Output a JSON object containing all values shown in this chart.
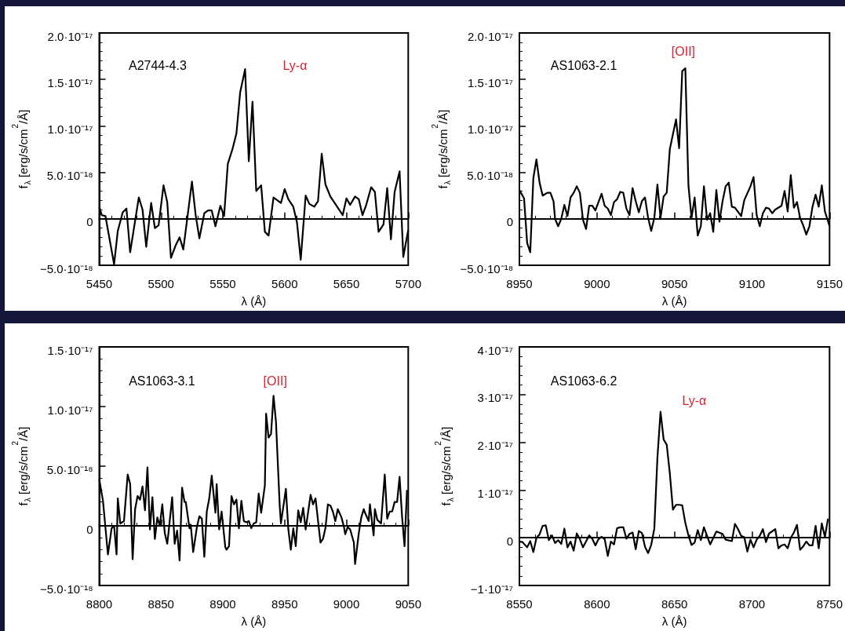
{
  "chart_data": [
    {
      "type": "line",
      "xlabel": "λ (Å)",
      "ylabel": "f$_{λ}$ [erg/s/cm$^{2}$/Å]",
      "color": "#000000",
      "annotations": [
        "A2744-4.3",
        "Ly-α"
      ],
      "xlim": [
        5450,
        5700
      ],
      "xticks": [
        5450,
        5500,
        5550,
        5600,
        5650,
        5700
      ],
      "ylim": [
        -5e-18,
        2e-17
      ],
      "yticks": [
        {
          "value": -5e-18,
          "label": "−5.0·10⁻¹⁸"
        },
        {
          "value": 0,
          "label": "0"
        },
        {
          "value": 5e-18,
          "label": "5.0·10⁻¹⁸"
        },
        {
          "value": 1e-17,
          "label": "1.0·10⁻¹⁷"
        },
        {
          "value": 1.5e-17,
          "label": "1.5·10⁻¹⁷"
        },
        {
          "value": 2e-17,
          "label": "2.0·10⁻¹⁷"
        }
      ],
      "x": [
        5450,
        5452,
        5455,
        5462,
        5465,
        5469,
        5472,
        5475,
        5482,
        5485,
        5488,
        5492,
        5495,
        5498,
        5502,
        5505,
        5508,
        5512,
        5515,
        5518,
        5525,
        5528,
        5531,
        5535,
        5538,
        5541,
        5544,
        5548,
        5551,
        5554,
        5558,
        5561,
        5564,
        5568,
        5571,
        5574,
        5577,
        5581,
        5584,
        5587,
        5591,
        5597,
        5600,
        5603,
        5607,
        5610,
        5613,
        5617,
        5620,
        5624,
        5627,
        5630,
        5633,
        5637,
        5647,
        5650,
        5653,
        5657,
        5660,
        5663,
        5666,
        5670,
        5673,
        5676,
        5680,
        5683,
        5686,
        5689,
        5693,
        5696,
        5700
      ],
      "values": [
        1.3e-18,
        4e-19,
        3e-19,
        -4.9e-18,
        -1.3e-18,
        7e-19,
        1.1e-18,
        -3.6e-18,
        2.3e-18,
        1e-18,
        -3e-18,
        1.7e-18,
        -1e-18,
        -7e-19,
        3.6e-18,
        1.8e-18,
        -4.2e-18,
        -2.8e-18,
        -2e-18,
        -3.3e-18,
        4e-18,
        4e-19,
        -2.1e-18,
        6e-19,
        9e-19,
        9e-19,
        -8e-19,
        1.4e-18,
        3e-19,
        5.9e-18,
        7.6e-18,
        9.2e-18,
        1.36e-17,
        1.61e-17,
        6.2e-18,
        1.26e-17,
        3e-18,
        3.6e-18,
        -1.4e-18,
        -1.8e-18,
        2.3e-18,
        1.7e-18,
        3.2e-18,
        2.1e-18,
        1.3e-18,
        -4e-19,
        -4.4e-18,
        2.5e-18,
        1.6e-18,
        1.3e-18,
        1.9e-18,
        7e-18,
        3.7e-18,
        2.4e-18,
        4e-19,
        2.2e-18,
        1.5e-18,
        2.4e-18,
        2.1e-18,
        4e-19,
        1.5e-18,
        3.4e-18,
        2.9e-18,
        -1.4e-18,
        -6e-19,
        3.3e-18,
        -2.2e-18,
        2.9e-18,
        5.1e-18,
        -4.1e-18,
        -1.2e-18
      ]
    },
    {
      "type": "line",
      "xlabel": "λ (Å)",
      "ylabel": "f$_{λ}$ [erg/s/cm$^{2}$/Å]",
      "color": "#000000",
      "annotations": [
        "AS1063-2.1",
        "[OII]"
      ],
      "xlim": [
        8950,
        9150
      ],
      "xticks": [
        8950,
        9000,
        9050,
        9100,
        9150
      ],
      "ylim": [
        -5e-18,
        2e-17
      ],
      "yticks": [
        {
          "value": -5e-18,
          "label": "−5.0·10⁻¹⁸"
        },
        {
          "value": 0,
          "label": "0"
        },
        {
          "value": 5e-18,
          "label": "5.0·10⁻¹⁸"
        },
        {
          "value": 1e-17,
          "label": "1.0·10⁻¹⁷"
        },
        {
          "value": 1.5e-17,
          "label": "1.5·10⁻¹⁷"
        },
        {
          "value": 2e-17,
          "label": "2.0·10⁻¹⁷"
        }
      ],
      "x": [
        8950,
        8953,
        8955,
        8957,
        8959,
        8961,
        8963,
        8965,
        8968,
        8970,
        8972,
        8973,
        8975,
        8977,
        8979,
        8981,
        8983,
        8985,
        8987,
        8989,
        8991,
        8993,
        8995,
        8997,
        8999,
        9003,
        9005,
        9007,
        9009,
        9011,
        9013,
        9015,
        9017,
        9019,
        9021,
        9023,
        9025,
        9027,
        9029,
        9031,
        9033,
        9035,
        9037,
        9039,
        9041,
        9043,
        9045,
        9047,
        9051,
        9053,
        9055,
        9057,
        9059,
        9061,
        9063,
        9065,
        9067,
        9069,
        9071,
        9073,
        9075,
        9077,
        9079,
        9081,
        9083,
        9085,
        9087,
        9089,
        9093,
        9095,
        9099,
        9101,
        9103,
        9105,
        9107,
        9109,
        9111,
        9113,
        9115,
        9119,
        9121,
        9123,
        9125,
        9127,
        9129,
        9131,
        9133,
        9135,
        9137,
        9139,
        9141,
        9143,
        9145,
        9147,
        9150
      ],
      "values": [
        3.1e-18,
        2.2e-18,
        -2.6e-18,
        -3.6e-18,
        4.4e-18,
        6.4e-18,
        3.9e-18,
        2.5e-18,
        2.8e-18,
        2.8e-18,
        1.9e-18,
        0.0,
        -8e-19,
        0.0,
        1.5e-18,
        3e-19,
        2.3e-18,
        2.8e-18,
        3.5e-18,
        2.8e-18,
        -1e-19,
        -1.1e-18,
        1.4e-18,
        1.4e-18,
        9e-19,
        2.7e-18,
        1.4e-18,
        1.1e-18,
        4e-19,
        1.8e-18,
        2.1e-18,
        2.9e-18,
        2.8e-18,
        1.1e-18,
        4e-19,
        3.3e-18,
        1.9e-18,
        7e-19,
        1.9e-18,
        2.3e-18,
        1e-19,
        -1.3e-18,
        1e-19,
        3.7e-18,
        1e-19,
        2.4e-18,
        2.8e-18,
        7.5e-18,
        1.07e-17,
        7.6e-18,
        1.59e-17,
        1.62e-17,
        3.6e-18,
        1e-19,
        2.3e-18,
        -1.8e-18,
        -8e-19,
        3.5e-18,
        -1e-19,
        6e-19,
        -1.4e-18,
        3.1e-18,
        -3e-19,
        1.9e-18,
        3.5e-18,
        3.9e-18,
        1.3e-18,
        1.2e-18,
        3e-19,
        2e-18,
        3.5e-18,
        4.5e-18,
        4e-19,
        -8e-19,
        6e-19,
        1.2e-18,
        1.1e-18,
        6e-19,
        1e-18,
        1.4e-18,
        3e-18,
        8e-19,
        4.7e-18,
        1.2e-18,
        1.8e-18,
        1e-19,
        -7e-19,
        -1.7e-18,
        -8e-19,
        1.3e-18,
        2.6e-18,
        1.3e-18,
        3.6e-18,
        8e-19,
        -8e-19
      ]
    },
    {
      "type": "line",
      "xlabel": "λ (Å)",
      "ylabel": "f$_{λ}$ [erg/s/cm$^{2}$/Å]",
      "color": "#000000",
      "annotations": [
        "AS1063-3.1",
        "[OII]"
      ],
      "xlim": [
        8800,
        9050
      ],
      "xticks": [
        8800,
        8850,
        8900,
        8950,
        9000,
        9050
      ],
      "ylim": [
        -5e-18,
        1.5e-17
      ],
      "yticks": [
        {
          "value": -5e-18,
          "label": "−5.0·10⁻¹⁸"
        },
        {
          "value": 0,
          "label": "0"
        },
        {
          "value": 5e-18,
          "label": "5.0·10⁻¹⁸"
        },
        {
          "value": 1e-17,
          "label": "1.0·10⁻¹⁷"
        },
        {
          "value": 1.5e-17,
          "label": "1.5·10⁻¹⁷"
        }
      ],
      "x": [
        8800,
        8803,
        8807,
        8810,
        8812,
        8814,
        8815,
        8817,
        8820,
        8823,
        8825,
        8827,
        8829,
        8831,
        8833,
        8835,
        8837,
        8839,
        8841,
        8843,
        8845,
        8847,
        8849,
        8851,
        8853,
        8855,
        8856,
        8859,
        8861,
        8863,
        8865,
        8867,
        8869,
        8870,
        8873,
        8874,
        8876,
        8879,
        8881,
        8883,
        8885,
        8887,
        8889,
        8891,
        8894,
        8895,
        8897,
        8899,
        8902,
        8903,
        8905,
        8907,
        8909,
        8911,
        8913,
        8915,
        8917,
        8919,
        8921,
        8923,
        8925,
        8927,
        8929,
        8931,
        8934,
        8935,
        8937,
        8939,
        8941,
        8943,
        8946,
        8947,
        8951,
        8953,
        8955,
        8957,
        8959,
        8961,
        8963,
        8965,
        8967,
        8971,
        8973,
        8975,
        8979,
        8981,
        8983,
        8985,
        8987,
        8989,
        8991,
        8993,
        8996,
        8998,
        8999,
        9001,
        9003,
        9006,
        9007,
        9010,
        9012,
        9014,
        9015,
        9018,
        9019,
        9022,
        9023,
        9025,
        9028,
        9031,
        9033,
        9035,
        9037,
        9039,
        9041,
        9043,
        9045,
        9047,
        9049
      ],
      "values": [
        3.9e-18,
        2.1e-18,
        -2.4e-18,
        -2e-19,
        0.0,
        -2.4e-18,
        2.3e-18,
        2e-19,
        4e-19,
        4.3e-18,
        3.5e-18,
        -2.8e-18,
        1.4e-18,
        2.5e-18,
        2.2e-18,
        3.3e-18,
        1.3e-18,
        4.9e-18,
        -3e-19,
        2.4e-18,
        -1.1e-18,
        7e-19,
        0.0,
        1.8e-18,
        -6e-19,
        -1.5e-18,
        -6e-19,
        2.4e-18,
        -1.5e-18,
        -4e-19,
        -2.9e-18,
        3.2e-18,
        2e-18,
        2e-18,
        -2e-19,
        1e-19,
        -2.2e-18,
        -1e-19,
        8e-19,
        6e-19,
        -2.6e-18,
        1.2e-18,
        2.3e-18,
        4.2e-18,
        1.1e-18,
        3.5e-18,
        -3e-19,
        1.2e-18,
        -1.8e-18,
        -2e-18,
        -1.7e-18,
        2.5e-18,
        1.8e-18,
        2.2e-18,
        -2e-19,
        2.1e-18,
        4e-19,
        3e-19,
        4e-19,
        -2e-19,
        2e-19,
        3e-19,
        2.7e-18,
        1.1e-18,
        3.4e-18,
        9.4e-18,
        7.4e-18,
        7.7e-18,
        1.09e-17,
        8.7e-18,
        1.7e-18,
        2e-19,
        3.1e-18,
        -3e-19,
        -2e-18,
        -2e-19,
        -1.7e-18,
        1.3e-18,
        3e-19,
        1.5e-18,
        -3e-19,
        2.6e-18,
        1.8e-18,
        2.3e-18,
        -1.4e-18,
        -1.1e-18,
        -2e-19,
        1.8e-18,
        1.7e-18,
        1.2e-18,
        4e-19,
        1.4e-18,
        7e-19,
        -1e-19,
        -7e-19,
        -1e-19,
        -3e-19,
        -1.4e-18,
        -3.2e-18,
        -6e-19,
        7e-19,
        1.4e-18,
        1.1e-18,
        4e-19,
        1.8e-18,
        -8e-19,
        1.4e-18,
        5e-19,
        2e-19,
        4.3e-18,
        6e-19,
        1.2e-18,
        1.2e-18,
        2e-18,
        2e-18,
        4.1e-18,
        8e-19,
        -1.7e-18,
        3e-18
      ]
    },
    {
      "type": "line",
      "xlabel": "λ (Å)",
      "ylabel": "f$_{λ}$ [erg/s/cm$^{2}$/Å]",
      "color": "#000000",
      "annotations": [
        "AS1063-6.2",
        "Ly-α"
      ],
      "xlim": [
        8550,
        8750
      ],
      "xticks": [
        8550,
        8600,
        8650,
        8700,
        8750
      ],
      "ylim": [
        -1e-17,
        4e-17
      ],
      "yticks": [
        {
          "value": -1e-17,
          "label": "−1·10⁻¹⁷"
        },
        {
          "value": 0,
          "label": "0"
        },
        {
          "value": 1e-17,
          "label": "1·10⁻¹⁷"
        },
        {
          "value": 2e-17,
          "label": "2·10⁻¹⁷"
        },
        {
          "value": 3e-17,
          "label": "3·10⁻¹⁷"
        },
        {
          "value": 4e-17,
          "label": "4·10⁻¹⁷"
        }
      ],
      "x": [
        8550,
        8552,
        8555,
        8557,
        8559,
        8561,
        8563,
        8565,
        8567,
        8569,
        8571,
        8573,
        8575,
        8577,
        8579,
        8581,
        8583,
        8585,
        8587,
        8589,
        8591,
        8595,
        8597,
        8599,
        8601,
        8603,
        8605,
        8607,
        8609,
        8611,
        8613,
        8615,
        8617,
        8619,
        8621,
        8623,
        8625,
        8627,
        8629,
        8631,
        8633,
        8635,
        8637,
        8639,
        8641,
        8643,
        8645,
        8647,
        8649,
        8651,
        8653,
        8655,
        8657,
        8659,
        8661,
        8663,
        8665,
        8667,
        8669,
        8673,
        8677,
        8681,
        8683,
        8687,
        8689,
        8691,
        8693,
        8695,
        8697,
        8699,
        8701,
        8703,
        8705,
        8707,
        8709,
        8711,
        8715,
        8717,
        8719,
        8721,
        8723,
        8725,
        8727,
        8729,
        8731,
        8733,
        8735,
        8737,
        8739,
        8741,
        8743,
        8745,
        8747,
        8749
      ],
      "values": [
        -8e-19,
        -9e-19,
        -2e-18,
        -7e-19,
        -3e-18,
        0.0,
        7e-19,
        2.5e-18,
        2.6e-18,
        -5e-19,
        5e-19,
        -1.1e-18,
        -5e-19,
        -1.3e-18,
        1.9e-18,
        -2e-18,
        -8e-19,
        -2.7e-18,
        9e-19,
        -3e-19,
        -2e-18,
        5e-19,
        -2e-19,
        -1.6e-18,
        -3e-19,
        2e-19,
        -3e-19,
        -3.8e-18,
        -8e-19,
        -1.4e-18,
        2e-18,
        2.2e-18,
        2.2e-18,
        -2e-19,
        8e-19,
        1.1e-18,
        -2.4e-18,
        1.4e-18,
        1e-18,
        -1.9e-18,
        -3.2e-18,
        -1.5e-18,
        1.9e-18,
        1.68e-17,
        2.64e-17,
        2.06e-17,
        1.95e-17,
        1.35e-17,
        5.9e-18,
        6.9e-18,
        6.9e-18,
        6.8e-18,
        3.1e-18,
        5e-19,
        -1.5e-18,
        -1e-18,
        1.6e-18,
        -5e-19,
        2.2e-18,
        -1.4e-18,
        1.3e-18,
        8e-19,
        -4e-19,
        -7e-19,
        2.9e-18,
        1.8e-18,
        4e-19,
        1e-19,
        -2.9e-18,
        -4e-19,
        -2e-18,
        -4e-19,
        4e-19,
        1.8e-18,
        -9e-19,
        9e-19,
        1.8e-18,
        -2.2e-18,
        -1.6e-18,
        -1.4e-18,
        -2.2e-18,
        0.0,
        1.1e-18,
        2.7e-18,
        -2.5e-18,
        -1.8e-18,
        -8e-19,
        -1.6e-18,
        -1.6e-18,
        2.5e-18,
        -2.2e-18,
        3e-18,
        2e-19,
        4e-18
      ]
    }
  ]
}
